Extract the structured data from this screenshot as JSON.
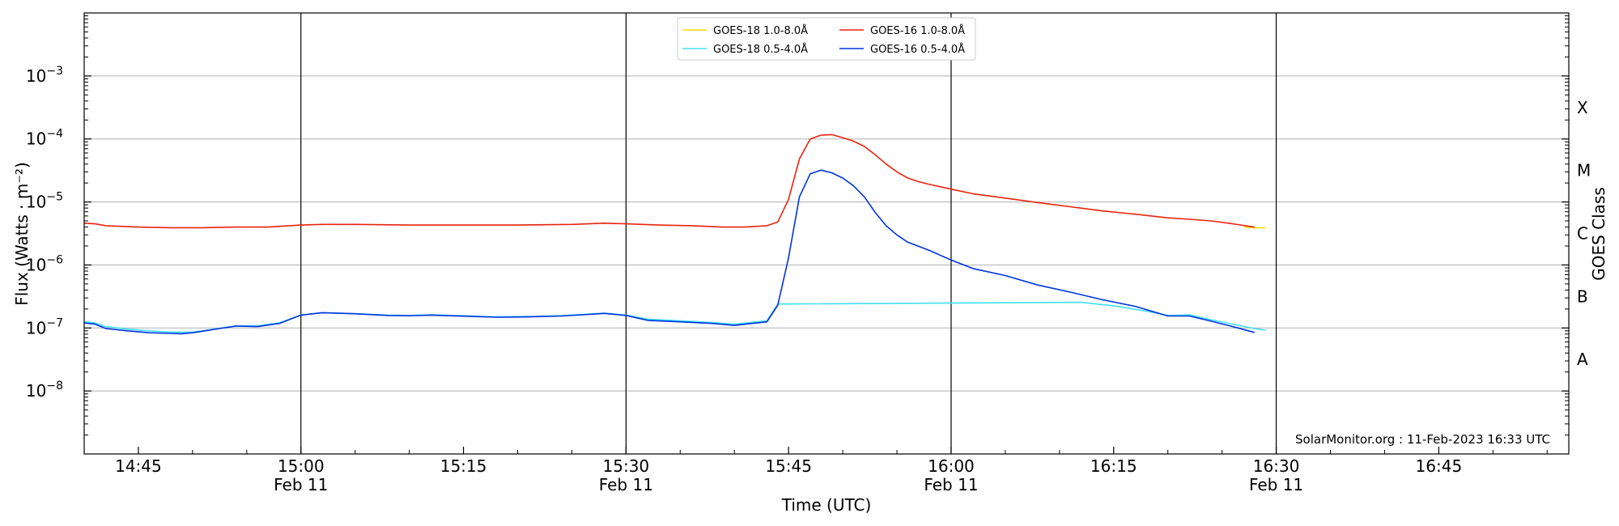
{
  "chart_data": {
    "type": "line",
    "xlabel": "Time (UTC)",
    "ylabel": "Flux (Watts · m⁻²)",
    "y2label": "GOES Class",
    "yscale": "log",
    "ylim": [
      1e-09,
      0.01
    ],
    "xlim": [
      "14:40",
      "16:57"
    ],
    "grid": "horizontal",
    "legend_placement": "top-center",
    "credit": "SolarMonitor.org : 11-Feb-2023 16:33 UTC",
    "x_ticks": [
      {
        "time": "14:45",
        "label": "14:45",
        "sublabel": ""
      },
      {
        "time": "15:00",
        "label": "15:00",
        "sublabel": "Feb 11"
      },
      {
        "time": "15:15",
        "label": "15:15",
        "sublabel": ""
      },
      {
        "time": "15:30",
        "label": "15:30",
        "sublabel": "Feb 11"
      },
      {
        "time": "15:45",
        "label": "15:45",
        "sublabel": ""
      },
      {
        "time": "16:00",
        "label": "16:00",
        "sublabel": "Feb 11"
      },
      {
        "time": "16:15",
        "label": "16:15",
        "sublabel": ""
      },
      {
        "time": "16:30",
        "label": "16:30",
        "sublabel": "Feb 11"
      },
      {
        "time": "16:45",
        "label": "16:45",
        "sublabel": ""
      }
    ],
    "vertical_lines": [
      "15:00",
      "15:30",
      "16:00",
      "16:30"
    ],
    "y_ticks": [
      {
        "exp": -8,
        "base": "10",
        "sup": "−8"
      },
      {
        "exp": -7,
        "base": "10",
        "sup": "−7"
      },
      {
        "exp": -6,
        "base": "10",
        "sup": "−6"
      },
      {
        "exp": -5,
        "base": "10",
        "sup": "−5"
      },
      {
        "exp": -4,
        "base": "10",
        "sup": "−4"
      },
      {
        "exp": -3,
        "base": "10",
        "sup": "−3"
      }
    ],
    "goes_classes": [
      {
        "label": "A",
        "exp": -7.5
      },
      {
        "label": "B",
        "exp": -6.5
      },
      {
        "label": "C",
        "exp": -5.5
      },
      {
        "label": "M",
        "exp": -4.5
      },
      {
        "label": "X",
        "exp": -3.5
      }
    ],
    "series": [
      {
        "name": "GOES-18 1.0-8.0Å",
        "color": "#ffd700",
        "points": [
          [
            "16:27",
            4e-06
          ],
          [
            "16:28",
            3.9e-06
          ],
          [
            "16:29",
            3.9e-06
          ]
        ]
      },
      {
        "name": "GOES-18 0.5-4.0Å",
        "color": "#40e0f0",
        "points": [
          [
            "14:40",
            1.25e-07
          ],
          [
            "14:41",
            1.2e-07
          ],
          [
            "14:42",
            1.05e-07
          ],
          [
            "14:44",
            9.6e-08
          ],
          [
            "14:46",
            9e-08
          ],
          [
            "14:48",
            8.6e-08
          ],
          [
            "14:50",
            8.6e-08
          ],
          [
            "14:52",
            9.6e-08
          ],
          [
            "14:54",
            1.08e-07
          ],
          [
            "14:56",
            1.08e-07
          ],
          [
            "14:58",
            1.2e-07
          ],
          [
            "15:00",
            1.6e-07
          ],
          [
            "15:02",
            1.75e-07
          ],
          [
            "15:05",
            1.68e-07
          ],
          [
            "15:08",
            1.6e-07
          ],
          [
            "15:10",
            1.58e-07
          ],
          [
            "15:12",
            1.62e-07
          ],
          [
            "15:15",
            1.56e-07
          ],
          [
            "15:18",
            1.5e-07
          ],
          [
            "15:21",
            1.52e-07
          ],
          [
            "15:24",
            1.57e-07
          ],
          [
            "15:26",
            1.64e-07
          ],
          [
            "15:28",
            1.72e-07
          ],
          [
            "15:30",
            1.6e-07
          ],
          [
            "15:32",
            1.38e-07
          ],
          [
            "15:35",
            1.3e-07
          ],
          [
            "15:38",
            1.22e-07
          ],
          [
            "15:40",
            1.15e-07
          ],
          [
            "15:43",
            1.3e-07
          ],
          [
            "15:44",
            2.4e-07
          ],
          [
            "16:12",
            2.55e-07
          ],
          [
            "16:15",
            2.25e-07
          ],
          [
            "16:18",
            1.85e-07
          ],
          [
            "16:20",
            1.58e-07
          ],
          [
            "16:22",
            1.62e-07
          ],
          [
            "16:24",
            1.35e-07
          ],
          [
            "16:26",
            1.15e-07
          ],
          [
            "16:28",
            9.8e-08
          ],
          [
            "16:29",
            9.2e-08
          ]
        ]
      },
      {
        "name": "GOES-16 1.0-8.0Å",
        "color": "#e8230e",
        "points": [
          [
            "14:40",
            4.6e-06
          ],
          [
            "14:41",
            4.5e-06
          ],
          [
            "14:42",
            4.2e-06
          ],
          [
            "14:45",
            4e-06
          ],
          [
            "14:48",
            3.9e-06
          ],
          [
            "14:51",
            3.9e-06
          ],
          [
            "14:54",
            4e-06
          ],
          [
            "14:57",
            4e-06
          ],
          [
            "15:00",
            4.3e-06
          ],
          [
            "15:02",
            4.4e-06
          ],
          [
            "15:05",
            4.4e-06
          ],
          [
            "15:10",
            4.3e-06
          ],
          [
            "15:15",
            4.3e-06
          ],
          [
            "15:20",
            4.3e-06
          ],
          [
            "15:25",
            4.4e-06
          ],
          [
            "15:28",
            4.6e-06
          ],
          [
            "15:30",
            4.5e-06
          ],
          [
            "15:33",
            4.3e-06
          ],
          [
            "15:36",
            4.2e-06
          ],
          [
            "15:39",
            4e-06
          ],
          [
            "15:41",
            4e-06
          ],
          [
            "15:43",
            4.2e-06
          ],
          [
            "15:44",
            4.8e-06
          ],
          [
            "15:45",
            1.1e-05
          ],
          [
            "15:46",
            4.8e-05
          ],
          [
            "15:47",
            0.0001
          ],
          [
            "15:48",
            0.000115
          ],
          [
            "15:49",
            0.000117
          ],
          [
            "15:50",
            0.000105
          ],
          [
            "15:51",
            9.2e-05
          ],
          [
            "15:52",
            7.6e-05
          ],
          [
            "15:53",
            5.6e-05
          ],
          [
            "15:54",
            4e-05
          ],
          [
            "15:55",
            3e-05
          ],
          [
            "15:56",
            2.4e-05
          ],
          [
            "15:57",
            2.1e-05
          ],
          [
            "15:58",
            1.9e-05
          ],
          [
            "16:00",
            1.6e-05
          ],
          [
            "16:02",
            1.35e-05
          ],
          [
            "16:05",
            1.15e-05
          ],
          [
            "16:08",
            9.8e-06
          ],
          [
            "16:11",
            8.4e-06
          ],
          [
            "16:14",
            7.2e-06
          ],
          [
            "16:17",
            6.4e-06
          ],
          [
            "16:20",
            5.6e-06
          ],
          [
            "16:22",
            5.3e-06
          ],
          [
            "16:24",
            5e-06
          ],
          [
            "16:26",
            4.5e-06
          ],
          [
            "16:28",
            4e-06
          ]
        ]
      },
      {
        "name": "GOES-16 0.5-4.0Å",
        "color": "#0033dd",
        "points": [
          [
            "14:40",
            1.2e-07
          ],
          [
            "14:41",
            1.15e-07
          ],
          [
            "14:42",
            9.8e-08
          ],
          [
            "14:44",
            9e-08
          ],
          [
            "14:46",
            8.4e-08
          ],
          [
            "14:48",
            8.2e-08
          ],
          [
            "14:49",
            8.1e-08
          ],
          [
            "14:50",
            8.4e-08
          ],
          [
            "14:52",
            9.5e-08
          ],
          [
            "14:54",
            1.07e-07
          ],
          [
            "14:56",
            1.05e-07
          ],
          [
            "14:58",
            1.18e-07
          ],
          [
            "15:00",
            1.6e-07
          ],
          [
            "15:02",
            1.75e-07
          ],
          [
            "15:05",
            1.68e-07
          ],
          [
            "15:08",
            1.58e-07
          ],
          [
            "15:10",
            1.56e-07
          ],
          [
            "15:12",
            1.6e-07
          ],
          [
            "15:15",
            1.54e-07
          ],
          [
            "15:18",
            1.48e-07
          ],
          [
            "15:21",
            1.5e-07
          ],
          [
            "15:24",
            1.55e-07
          ],
          [
            "15:26",
            1.62e-07
          ],
          [
            "15:28",
            1.7e-07
          ],
          [
            "15:30",
            1.58e-07
          ],
          [
            "15:32",
            1.32e-07
          ],
          [
            "15:35",
            1.25e-07
          ],
          [
            "15:38",
            1.18e-07
          ],
          [
            "15:40",
            1.1e-07
          ],
          [
            "15:43",
            1.25e-07
          ],
          [
            "15:44",
            2.3e-07
          ],
          [
            "15:45",
            1.3e-06
          ],
          [
            "15:46",
            1.2e-05
          ],
          [
            "15:47",
            2.8e-05
          ],
          [
            "15:48",
            3.2e-05
          ],
          [
            "15:49",
            2.9e-05
          ],
          [
            "15:50",
            2.4e-05
          ],
          [
            "15:51",
            1.8e-05
          ],
          [
            "15:52",
            1.2e-05
          ],
          [
            "15:53",
            6.8e-06
          ],
          [
            "15:54",
            4.2e-06
          ],
          [
            "15:55",
            3e-06
          ],
          [
            "15:56",
            2.3e-06
          ],
          [
            "15:58",
            1.7e-06
          ],
          [
            "16:00",
            1.2e-06
          ],
          [
            "16:02",
            8.8e-07
          ],
          [
            "16:05",
            6.8e-07
          ],
          [
            "16:08",
            4.8e-07
          ],
          [
            "16:11",
            3.7e-07
          ],
          [
            "16:14",
            2.8e-07
          ],
          [
            "16:17",
            2.2e-07
          ],
          [
            "16:20",
            1.55e-07
          ],
          [
            "16:22",
            1.55e-07
          ],
          [
            "16:24",
            1.28e-07
          ],
          [
            "16:26",
            1.05e-07
          ],
          [
            "16:28",
            8.5e-08
          ]
        ]
      }
    ]
  }
}
